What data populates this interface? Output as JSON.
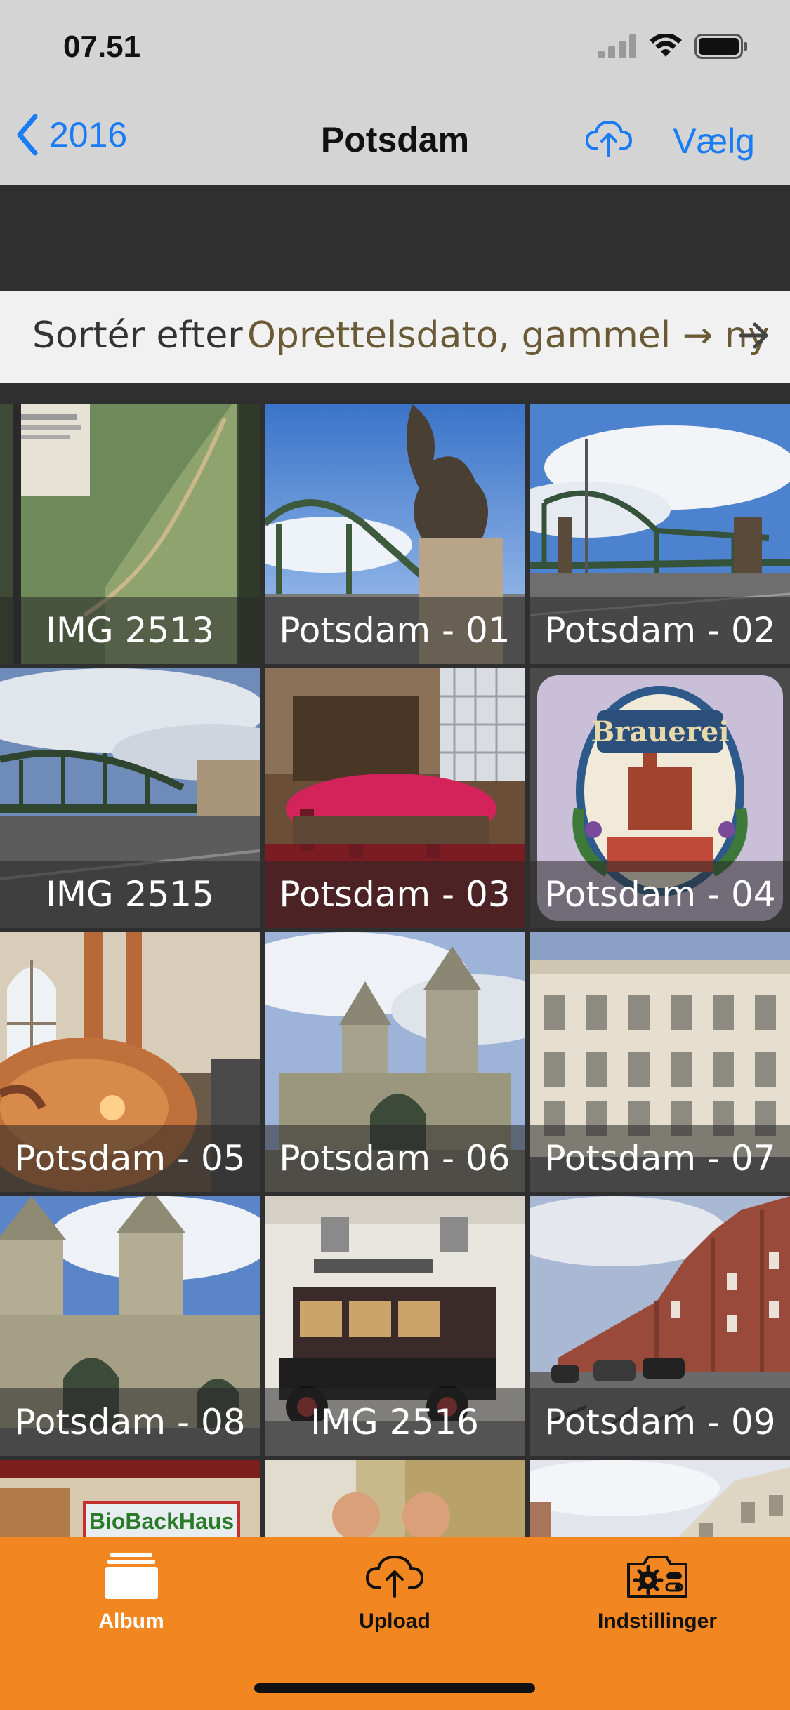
{
  "status": {
    "time": "07.51"
  },
  "nav": {
    "back_label": "2016",
    "title": "Potsdam",
    "select_label": "Vælg"
  },
  "sort": {
    "label": "Sortér efter",
    "value": "Oprettelsdato, gammel → ny"
  },
  "photos": [
    {
      "caption": "IMG 2513"
    },
    {
      "caption": "Potsdam - 01"
    },
    {
      "caption": "Potsdam - 02"
    },
    {
      "caption": "IMG 2515"
    },
    {
      "caption": "Potsdam - 03"
    },
    {
      "caption": "Potsdam - 04"
    },
    {
      "caption": "Potsdam - 05"
    },
    {
      "caption": "Potsdam - 06"
    },
    {
      "caption": "Potsdam - 07"
    },
    {
      "caption": "Potsdam - 08"
    },
    {
      "caption": "IMG 2516"
    },
    {
      "caption": "Potsdam - 09"
    }
  ],
  "tabs": [
    {
      "label": "Album",
      "icon": "album-icon",
      "active": true
    },
    {
      "label": "Upload",
      "icon": "cloud-upload-icon",
      "active": false
    },
    {
      "label": "Indstillinger",
      "icon": "settings-camera-icon",
      "active": false
    }
  ],
  "colors": {
    "accent": "#1a7cf4",
    "tab_bar": "#f28722",
    "sort_value": "#6b5a36"
  }
}
